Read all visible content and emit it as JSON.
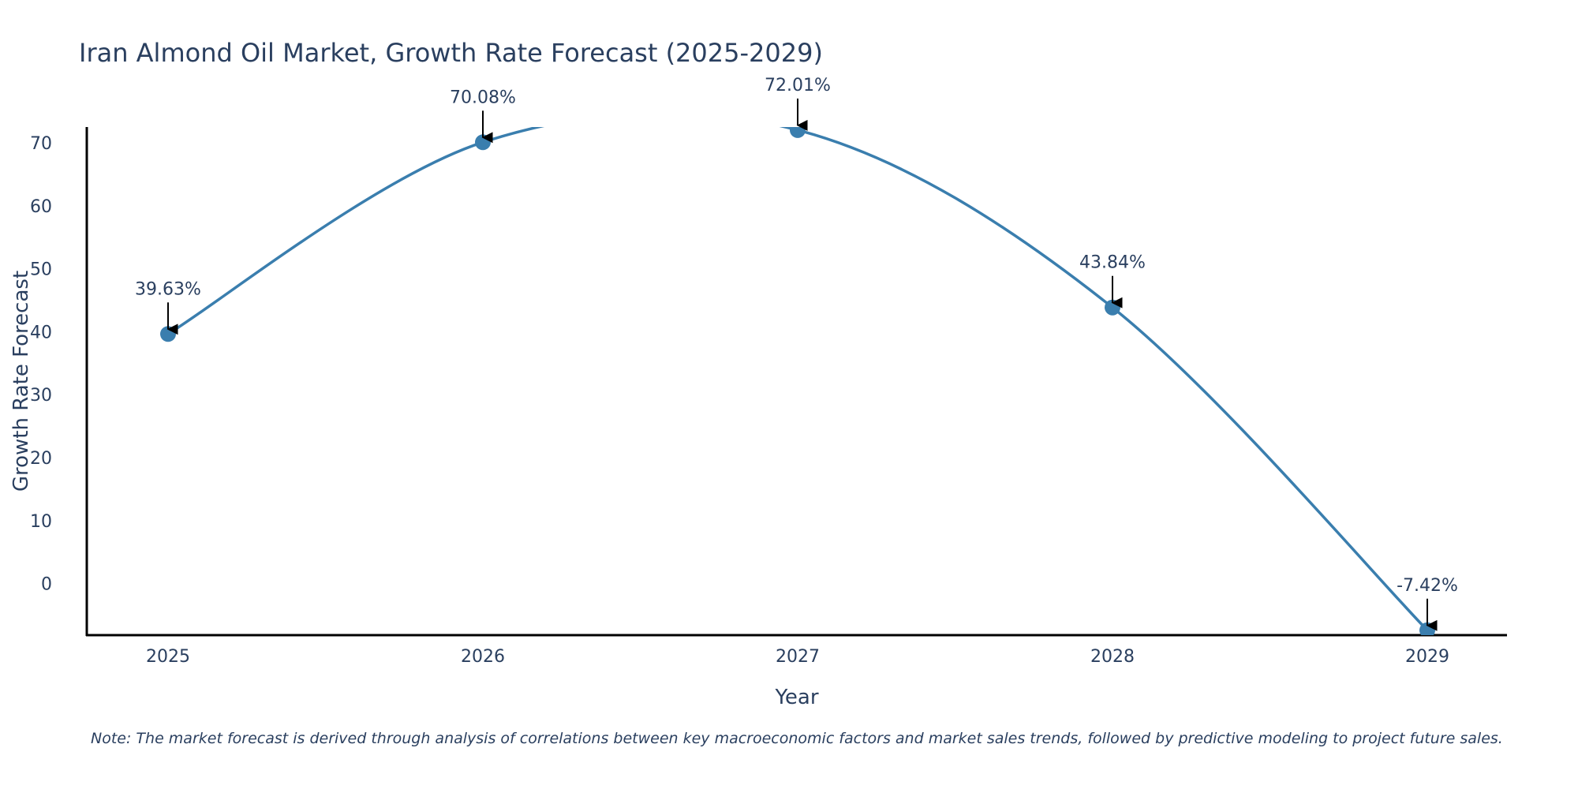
{
  "chart_data": {
    "type": "line",
    "title": "Iran Almond Oil Market, Growth Rate Forecast (2025-2029)",
    "xlabel": "Year",
    "ylabel": "Growth Rate Forecast",
    "categories": [
      "2025",
      "2026",
      "2027",
      "2028",
      "2029"
    ],
    "series": [
      {
        "name": "Growth Rate Forecast",
        "values": [
          39.63,
          70.08,
          72.01,
          43.84,
          -7.42
        ],
        "color": "#3a7eae"
      }
    ],
    "data_labels": [
      "39.63%",
      "70.08%",
      "72.01%",
      "43.84%",
      "-7.42%"
    ],
    "y_ticks": [
      0,
      10,
      20,
      30,
      40,
      50,
      60,
      70
    ],
    "y_tick_labels": [
      "0",
      "10",
      "20",
      "30",
      "40",
      "50",
      "60",
      "70"
    ],
    "ylim": [
      -8.2,
      72.5
    ],
    "grid": false,
    "note": "Note: The market forecast is derived through analysis of correlations between key macroeconomic factors and market sales trends, followed by predictive modeling to project future sales."
  }
}
